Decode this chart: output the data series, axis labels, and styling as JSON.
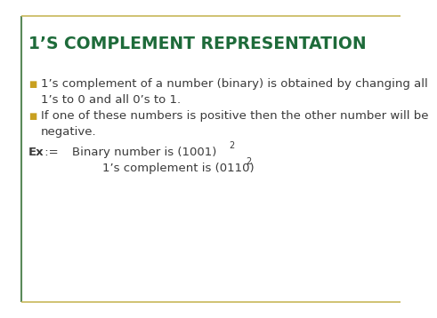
{
  "title": "1’S COMPLEMENT REPRESENTATION",
  "title_color": "#1E6B3A",
  "title_fontsize": 13.5,
  "background_color": "#ffffff",
  "border_top_color": "#C8B85A",
  "border_left_color": "#5A8A5A",
  "bullet_color": "#C8A020",
  "bullet1_line1": "1’s complement of a number (binary) is obtained by changing all",
  "bullet1_line2": "1’s to 0 and all 0’s to 1.",
  "bullet2_line1": "If one of these numbers is positive then the other number will be",
  "bullet2_line2": "negative.",
  "ex_label": "Ex",
  "ex_colon": " :=",
  "ex_line1_main": "    Binary number is (1001)",
  "ex_line1_sub": "2",
  "ex_line2_main": "            1’s complement is (0110)",
  "ex_line2_sub": "2",
  "text_color": "#3A3A3A",
  "text_fontsize": 9.5
}
